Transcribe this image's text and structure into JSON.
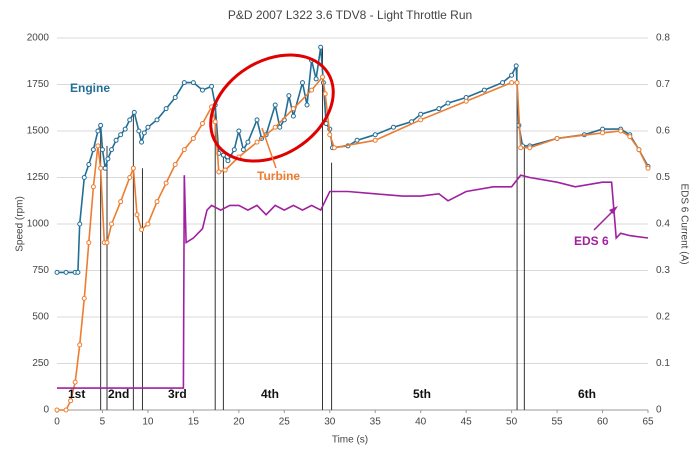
{
  "chart_data": {
    "type": "line",
    "title": "P&D  2007 L322 3.6 TDV8  -  Light Throttle Run",
    "xlabel": "Time (s)",
    "ylabel": "Speed (rpm)",
    "y2label": "EDS 6 Current (A)",
    "xlim": [
      0,
      65
    ],
    "xticks": [
      0,
      5,
      10,
      15,
      20,
      25,
      30,
      35,
      40,
      45,
      50,
      55,
      60,
      65
    ],
    "ylim": [
      0,
      2000
    ],
    "yticks": [
      0,
      250,
      500,
      750,
      1000,
      1250,
      1500,
      1750,
      2000
    ],
    "y2lim": [
      0,
      0.8
    ],
    "y2ticks": [
      0,
      0.1,
      0.2,
      0.3,
      0.4,
      0.5,
      0.6,
      0.7,
      0.8
    ],
    "grid": true,
    "series": [
      {
        "name": "Engine",
        "color": "#236e96",
        "marker": true,
        "x": [
          0,
          1,
          2,
          2.3,
          2.5,
          3,
          3.5,
          4,
          4.5,
          4.8,
          5,
          5.3,
          5.6,
          6,
          6.5,
          7,
          7.5,
          8,
          8.5,
          9,
          9.3,
          9.6,
          10,
          11,
          12,
          13,
          14,
          15,
          16,
          17,
          17.4,
          17.8,
          18.3,
          18.8,
          19.5,
          20,
          20.5,
          21,
          22,
          22.5,
          23,
          24,
          24.5,
          25,
          25.5,
          26,
          27,
          27.5,
          28,
          28.5,
          29,
          29.3,
          29.6,
          30,
          30.3,
          32,
          33,
          35,
          37,
          39,
          40,
          42,
          43,
          45,
          47,
          49,
          50,
          50.5,
          50.8,
          51.2,
          52,
          55,
          58,
          60,
          62,
          63,
          64,
          65
        ],
        "values": [
          740,
          740,
          740,
          740,
          1000,
          1250,
          1320,
          1400,
          1500,
          1530,
          1400,
          1300,
          1350,
          1400,
          1450,
          1480,
          1510,
          1560,
          1600,
          1500,
          1440,
          1490,
          1520,
          1560,
          1620,
          1680,
          1760,
          1760,
          1720,
          1740,
          1640,
          1380,
          1370,
          1340,
          1400,
          1500,
          1400,
          1440,
          1560,
          1460,
          1480,
          1640,
          1520,
          1560,
          1690,
          1580,
          1760,
          1640,
          1880,
          1780,
          1950,
          1760,
          1540,
          1510,
          1410,
          1420,
          1450,
          1480,
          1520,
          1550,
          1590,
          1620,
          1650,
          1680,
          1720,
          1760,
          1800,
          1850,
          1530,
          1420,
          1420,
          1460,
          1480,
          1510,
          1510,
          1480,
          1400,
          1310
        ]
      },
      {
        "name": "Turbine",
        "color": "#ed7d31",
        "marker": true,
        "x": [
          0,
          1,
          1.5,
          2,
          2.5,
          3,
          3.5,
          4,
          4.5,
          4.8,
          5.2,
          5.5,
          6,
          7,
          8,
          8.4,
          8.8,
          9.3,
          10,
          11,
          12,
          13,
          14,
          15,
          16,
          17,
          17.4,
          17.8,
          18.5,
          20,
          22,
          24,
          26,
          28,
          29.2,
          29.5,
          30,
          30.5,
          35,
          40,
          45,
          50,
          50.6,
          51,
          52,
          55,
          60,
          62,
          63,
          64,
          65
        ],
        "values": [
          0,
          0,
          50,
          150,
          350,
          600,
          900,
          1200,
          1420,
          1300,
          900,
          900,
          1000,
          1120,
          1250,
          1300,
          1050,
          970,
          1000,
          1120,
          1220,
          1320,
          1400,
          1460,
          1540,
          1630,
          1550,
          1280,
          1290,
          1360,
          1440,
          1520,
          1620,
          1720,
          1790,
          1700,
          1480,
          1410,
          1450,
          1560,
          1660,
          1760,
          1760,
          1410,
          1410,
          1460,
          1490,
          1500,
          1470,
          1400,
          1300
        ]
      },
      {
        "name": "EDS 6",
        "color": "#a020a0",
        "marker": false,
        "axis": "y2",
        "x": [
          0,
          13.9,
          14,
          14.2,
          15,
          16,
          16.5,
          17,
          18,
          19,
          20,
          21,
          22,
          23,
          24,
          25,
          26,
          27,
          28,
          29,
          30,
          32,
          35,
          38,
          40,
          42,
          43,
          45,
          48,
          50,
          51,
          52,
          55,
          57,
          60,
          61,
          61.5,
          62,
          63,
          65
        ],
        "values": [
          0.047,
          0.047,
          0.505,
          0.36,
          0.37,
          0.39,
          0.43,
          0.44,
          0.43,
          0.44,
          0.44,
          0.43,
          0.44,
          0.42,
          0.44,
          0.43,
          0.44,
          0.43,
          0.44,
          0.43,
          0.47,
          0.47,
          0.465,
          0.46,
          0.46,
          0.465,
          0.45,
          0.47,
          0.48,
          0.48,
          0.505,
          0.5,
          0.49,
          0.48,
          0.49,
          0.49,
          0.37,
          0.38,
          0.375,
          0.37
        ]
      }
    ],
    "vlines": {
      "x": [
        4.8,
        5.5,
        8.4,
        9.4,
        17.4,
        18.3,
        29.2,
        30.2,
        50.6,
        51.4
      ],
      "values": [
        1530,
        1420,
        1600,
        1300,
        1640,
        1380,
        1950,
        1330,
        1850,
        1410
      ]
    },
    "annotations": [
      "Engine",
      "Turbine",
      "EDS 6",
      "1st",
      "2nd",
      "3rd",
      "4th",
      "5th",
      "6th"
    ]
  }
}
